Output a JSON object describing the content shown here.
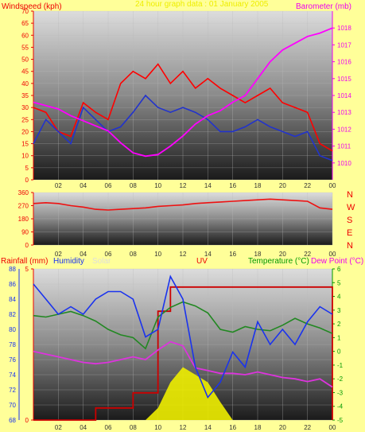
{
  "header": {
    "left_title": "Windspeed (kph)",
    "center_title": "24 hour graph data : 01 January 2005",
    "right_title": "Barometer (mb)"
  },
  "bottom_header": {
    "rainfall": "Rainfall (mm)",
    "humidity": "Humidity",
    "solar": "Solar",
    "uv": "UV",
    "temperature": "Temperature (°C)",
    "dewpoint": "Dew Point (°C)"
  },
  "colors": {
    "background": "#ffff99",
    "windspeed": "#ff0000",
    "windavg": "#2233cc",
    "barometer": "#ff00ff",
    "winddir": "#ee1111",
    "rainfall": "#cc0000",
    "humidity": "#1a33ee",
    "temperature": "#228822",
    "dewpoint": "#dd33dd",
    "solar": "#eeee00",
    "uv": "#ff3333",
    "axis_left": "#ee0000",
    "axis_right": "#ee00ee",
    "axis_green": "#009900"
  },
  "x_ticks": [
    "02",
    "04",
    "06",
    "08",
    "10",
    "12",
    "14",
    "16",
    "18",
    "20",
    "22",
    "00"
  ],
  "direction_labels": [
    "N",
    "W",
    "S",
    "E",
    "N"
  ],
  "chart_data": [
    {
      "type": "line",
      "title": "",
      "xlabel": "",
      "ylabel": "Windspeed (kph)",
      "y2label": "Barometer (mb)",
      "ylim": [
        0,
        70
      ],
      "y2lim": [
        1009,
        1019
      ],
      "yticks": [
        "0",
        "5",
        "10",
        "15",
        "20",
        "25",
        "30",
        "35",
        "40",
        "45",
        "50",
        "55",
        "60",
        "65",
        "70"
      ],
      "y2ticks": [
        "1010",
        "1011",
        "1012",
        "1013",
        "1014",
        "1015",
        "1016",
        "1017",
        "1018"
      ],
      "x": [
        0,
        1,
        2,
        3,
        4,
        5,
        6,
        7,
        8,
        9,
        10,
        11,
        12,
        13,
        14,
        15,
        16,
        17,
        18,
        19,
        20,
        21,
        22,
        23,
        24
      ],
      "series": [
        {
          "name": "Windspeed",
          "values": [
            30,
            28,
            20,
            18,
            32,
            28,
            25,
            40,
            45,
            42,
            48,
            40,
            45,
            38,
            42,
            38,
            35,
            32,
            35,
            38,
            32,
            30,
            28,
            15,
            12
          ]
        },
        {
          "name": "Wind average",
          "values": [
            15,
            25,
            20,
            15,
            30,
            25,
            20,
            22,
            28,
            35,
            30,
            28,
            30,
            28,
            25,
            20,
            20,
            22,
            25,
            22,
            20,
            18,
            20,
            10,
            8
          ]
        },
        {
          "name": "Barometer",
          "values": [
            1013.6,
            1013.4,
            1013.2,
            1012.8,
            1012.5,
            1012.2,
            1011.9,
            1011.2,
            1010.6,
            1010.4,
            1010.5,
            1011.0,
            1011.6,
            1012.3,
            1012.8,
            1013.1,
            1013.6,
            1014.0,
            1015.0,
            1016.0,
            1016.7,
            1017.1,
            1017.5,
            1017.7,
            1018.0
          ]
        }
      ]
    },
    {
      "type": "line",
      "title": "",
      "ylabel": "",
      "ylim": [
        0,
        360
      ],
      "yticks": [
        "0",
        "90",
        "180",
        "270",
        "360"
      ],
      "x": [
        0,
        1,
        2,
        3,
        4,
        5,
        6,
        7,
        8,
        9,
        10,
        11,
        12,
        13,
        14,
        15,
        16,
        17,
        18,
        19,
        20,
        21,
        22,
        23,
        24
      ],
      "series": [
        {
          "name": "Wind direction",
          "values": [
            285,
            290,
            285,
            270,
            260,
            245,
            240,
            245,
            250,
            255,
            265,
            270,
            275,
            285,
            290,
            295,
            300,
            305,
            310,
            315,
            310,
            305,
            300,
            255,
            245
          ]
        }
      ]
    },
    {
      "type": "line",
      "title": "",
      "ylabel": "Humidity",
      "ylim": [
        68,
        88
      ],
      "yticks": [
        "68",
        "70",
        "72",
        "74",
        "76",
        "78",
        "80",
        "82",
        "84",
        "86",
        "88"
      ],
      "rain_ticks": [
        "0",
        "5"
      ],
      "temp_ylim": [
        -5,
        6
      ],
      "temp_ticks": [
        "-5",
        "-4",
        "-3",
        "-2",
        "-1",
        "0",
        "1",
        "2",
        "3",
        "4",
        "5",
        "6"
      ],
      "x": [
        0,
        1,
        2,
        3,
        4,
        5,
        6,
        7,
        8,
        9,
        10,
        11,
        12,
        13,
        14,
        15,
        16,
        17,
        18,
        19,
        20,
        21,
        22,
        23,
        24
      ],
      "series": [
        {
          "name": "Humidity",
          "values": [
            86,
            84,
            82,
            83,
            82,
            84,
            85,
            85,
            84,
            79,
            80,
            87,
            84,
            75,
            71,
            73,
            77,
            75,
            81,
            78,
            80,
            78,
            81,
            83,
            82
          ]
        },
        {
          "name": "Temperature",
          "values": [
            2.6,
            2.5,
            2.7,
            2.9,
            2.6,
            2.2,
            1.6,
            1.2,
            1.0,
            0.2,
            2.5,
            3.2,
            3.6,
            3.3,
            2.8,
            1.6,
            1.4,
            1.8,
            1.6,
            1.5,
            1.9,
            2.4,
            2.0,
            1.7,
            1.3
          ]
        },
        {
          "name": "Dew Point",
          "values": [
            0.0,
            -0.2,
            -0.4,
            -0.6,
            -0.8,
            -0.9,
            -0.8,
            -0.6,
            -0.4,
            -0.6,
            0.1,
            0.7,
            0.4,
            -1.2,
            -1.4,
            -1.6,
            -1.6,
            -1.7,
            -1.5,
            -1.7,
            -1.9,
            -2.0,
            -2.2,
            -2.0,
            -2.6
          ]
        },
        {
          "name": "Rainfall",
          "values": [
            0,
            0,
            0,
            0,
            0,
            0.4,
            0.4,
            0.4,
            0.9,
            0.9,
            3.6,
            4.4,
            4.4,
            4.4,
            4.4,
            4.4,
            4.4,
            4.4,
            4.4,
            4.4,
            4.4,
            4.4,
            4.4,
            4.4,
            0
          ]
        },
        {
          "name": "Solar",
          "values": [
            0,
            0,
            0,
            0,
            0,
            0,
            0,
            0,
            0,
            0,
            8,
            25,
            35,
            30,
            25,
            12,
            0,
            0,
            0,
            0,
            0,
            0,
            0,
            0,
            0
          ]
        }
      ]
    }
  ]
}
